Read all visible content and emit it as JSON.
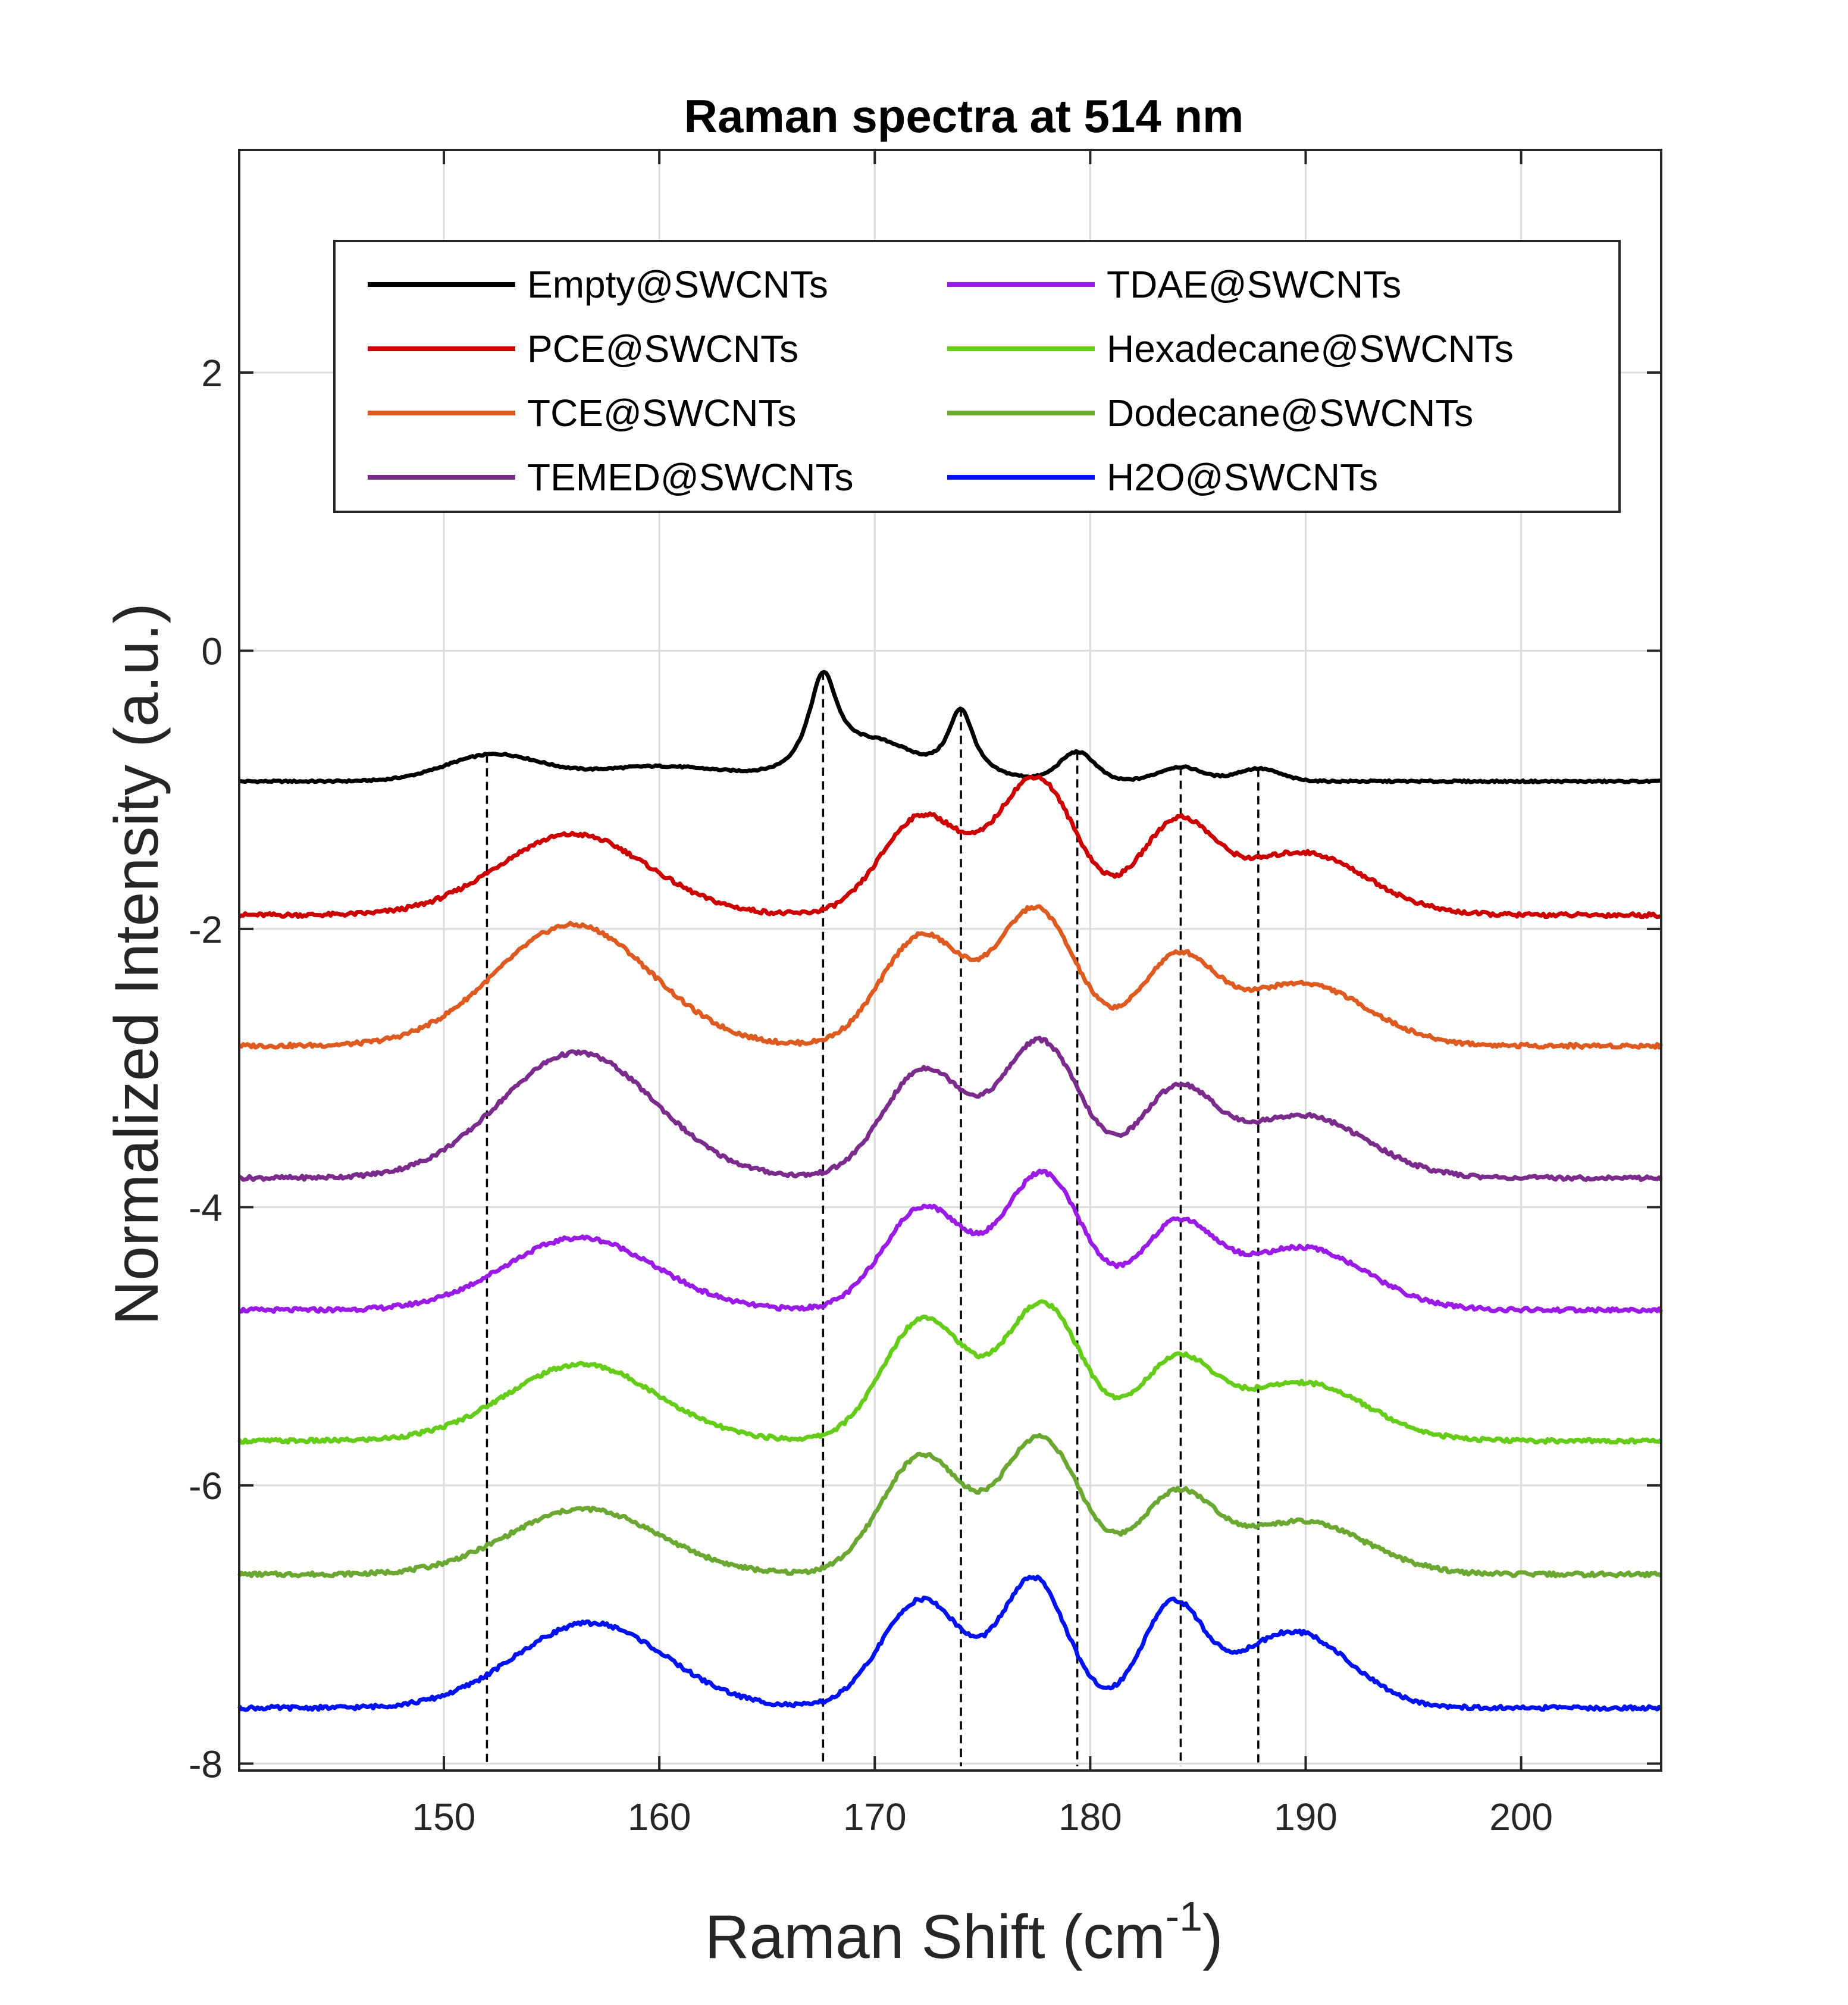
{
  "chart_data": {
    "type": "line",
    "title": "Raman spectra at 514 nm",
    "xlabel": "Raman Shift (cm",
    "xlabel_sup": "-1",
    "xlabel_end": ")",
    "ylabel": "Normalized Intensity (a.u.)",
    "xlim": [
      140.5,
      206.5
    ],
    "ylim": [
      -8.05,
      3.6
    ],
    "xticks": [
      150,
      160,
      170,
      180,
      190,
      200
    ],
    "yticks": [
      -8,
      -6,
      -4,
      -2,
      0,
      2
    ],
    "grid": true,
    "legend_position": "top",
    "legend_columns": 2,
    "reference_lines_x": [
      152.0,
      167.6,
      174.0,
      179.4,
      184.2,
      187.8
    ],
    "series": [
      {
        "name": "Empty@SWCNTs",
        "color": "#000000",
        "offset": -0.94,
        "peaks": [
          {
            "c": 152.3,
            "a": 0.19,
            "w": 2.2
          },
          {
            "c": 159.8,
            "a": 0.1,
            "w": 3.0
          },
          {
            "c": 167.6,
            "a": 0.72,
            "w": 0.85,
            "shape": "lorentz"
          },
          {
            "c": 170.2,
            "a": 0.22,
            "w": 1.6
          },
          {
            "c": 174.0,
            "a": 0.5,
            "w": 0.75,
            "shape": "lorentz"
          },
          {
            "c": 179.4,
            "a": 0.2,
            "w": 0.8
          },
          {
            "c": 184.2,
            "a": 0.1,
            "w": 1.0
          },
          {
            "c": 187.8,
            "a": 0.09,
            "w": 1.0
          }
        ]
      },
      {
        "name": "PCE@SWCNTs",
        "color": "#cc0000",
        "offset": -1.9,
        "peaks": [
          {
            "c": 156.0,
            "a": 0.58,
            "w": 3.5
          },
          {
            "c": 172.2,
            "a": 0.71,
            "w": 1.9
          },
          {
            "c": 177.5,
            "a": 0.98,
            "w": 1.8
          },
          {
            "c": 184.0,
            "a": 0.63,
            "w": 1.7
          },
          {
            "c": 189.8,
            "a": 0.45,
            "w": 3.0
          }
        ]
      },
      {
        "name": "TCE@SWCNTs",
        "color": "#dd5a20",
        "offset": -2.84,
        "peaks": [
          {
            "c": 156.0,
            "a": 0.87,
            "w": 3.6
          },
          {
            "c": 172.2,
            "a": 0.79,
            "w": 1.9
          },
          {
            "c": 177.5,
            "a": 0.98,
            "w": 1.8
          },
          {
            "c": 184.0,
            "a": 0.6,
            "w": 1.7
          },
          {
            "c": 189.8,
            "a": 0.45,
            "w": 3.0
          }
        ]
      },
      {
        "name": "TEMED@SWCNTs",
        "color": "#7a2b8c",
        "offset": -3.79,
        "peaks": [
          {
            "c": 156.2,
            "a": 0.9,
            "w": 3.6
          },
          {
            "c": 172.3,
            "a": 0.78,
            "w": 1.9
          },
          {
            "c": 177.7,
            "a": 0.98,
            "w": 1.8
          },
          {
            "c": 184.0,
            "a": 0.6,
            "w": 1.7
          },
          {
            "c": 189.8,
            "a": 0.45,
            "w": 3.0
          }
        ]
      },
      {
        "name": "TDAE@SWCNTs",
        "color": "#9a1be6",
        "offset": -4.74,
        "peaks": [
          {
            "c": 156.3,
            "a": 0.52,
            "w": 3.5
          },
          {
            "c": 172.3,
            "a": 0.74,
            "w": 1.9
          },
          {
            "c": 177.8,
            "a": 0.98,
            "w": 1.8
          },
          {
            "c": 184.0,
            "a": 0.58,
            "w": 1.7
          },
          {
            "c": 189.8,
            "a": 0.45,
            "w": 3.0
          }
        ]
      },
      {
        "name": "Hexadecane@SWCNTs",
        "color": "#66cc1a",
        "offset": -5.68,
        "peaks": [
          {
            "c": 156.4,
            "a": 0.55,
            "w": 3.5
          },
          {
            "c": 172.3,
            "a": 0.88,
            "w": 1.9
          },
          {
            "c": 177.8,
            "a": 0.98,
            "w": 1.8
          },
          {
            "c": 184.0,
            "a": 0.55,
            "w": 1.7
          },
          {
            "c": 189.8,
            "a": 0.42,
            "w": 3.0
          }
        ]
      },
      {
        "name": "Dodecane@SWCNTs",
        "color": "#6aa832",
        "offset": -6.64,
        "peaks": [
          {
            "c": 156.5,
            "a": 0.47,
            "w": 3.5
          },
          {
            "c": 172.2,
            "a": 0.85,
            "w": 1.9
          },
          {
            "c": 177.7,
            "a": 0.98,
            "w": 1.8
          },
          {
            "c": 184.0,
            "a": 0.55,
            "w": 1.7
          },
          {
            "c": 189.8,
            "a": 0.38,
            "w": 3.0
          }
        ]
      },
      {
        "name": "H2O@SWCNTs",
        "color": "#0012f0",
        "offset": -7.6,
        "peaks": [
          {
            "c": 156.8,
            "a": 0.61,
            "w": 3.5
          },
          {
            "c": 172.2,
            "a": 0.78,
            "w": 1.9
          },
          {
            "c": 177.4,
            "a": 0.92,
            "w": 1.5
          },
          {
            "c": 183.8,
            "a": 0.72,
            "w": 1.4
          },
          {
            "c": 189.4,
            "a": 0.55,
            "w": 2.6
          }
        ]
      }
    ]
  }
}
